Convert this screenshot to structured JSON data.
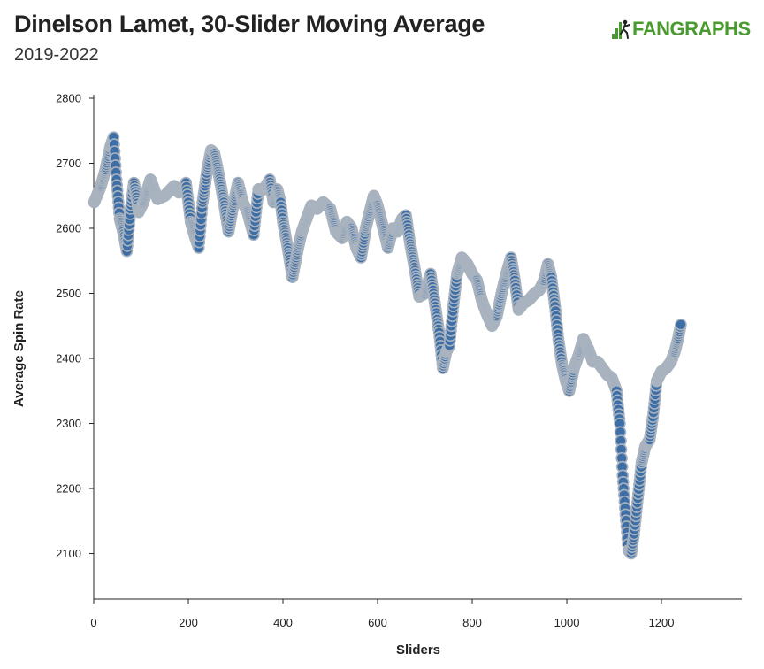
{
  "header": {
    "title": "Dinelson Lamet, 30-Slider Moving Average",
    "subtitle": "2019-2022"
  },
  "logo": {
    "text": "FANGRAPHS",
    "icon": "fangraphs-bars-icon",
    "color": "#4a9b2f"
  },
  "colors": {
    "marker_fill": "#3d6ea6",
    "marker_stroke": "#a9b3bf",
    "axis": "#222222"
  },
  "chart_data": {
    "type": "scatter",
    "title": "Dinelson Lamet, 30-Slider Moving Average",
    "subtitle": "2019-2022",
    "xlabel": "Sliders",
    "ylabel": "Average Spin Rate",
    "xlim": [
      0,
      1370
    ],
    "ylim": [
      2030,
      2800
    ],
    "xticks": [
      "0",
      "200",
      "400",
      "600",
      "800",
      "1000",
      "1200"
    ],
    "yticks": [
      "2100",
      "2200",
      "2300",
      "2400",
      "2500",
      "2600",
      "2700",
      "2800"
    ],
    "grid": false,
    "legend": "none",
    "keypoints": [
      [
        1,
        2640
      ],
      [
        15,
        2665
      ],
      [
        25,
        2690
      ],
      [
        35,
        2725
      ],
      [
        42,
        2740
      ],
      [
        48,
        2675
      ],
      [
        55,
        2615
      ],
      [
        62,
        2595
      ],
      [
        70,
        2565
      ],
      [
        78,
        2630
      ],
      [
        85,
        2670
      ],
      [
        95,
        2625
      ],
      [
        105,
        2640
      ],
      [
        120,
        2675
      ],
      [
        135,
        2645
      ],
      [
        150,
        2650
      ],
      [
        170,
        2665
      ],
      [
        180,
        2655
      ],
      [
        195,
        2670
      ],
      [
        205,
        2610
      ],
      [
        215,
        2585
      ],
      [
        222,
        2570
      ],
      [
        230,
        2640
      ],
      [
        240,
        2690
      ],
      [
        248,
        2720
      ],
      [
        255,
        2715
      ],
      [
        265,
        2680
      ],
      [
        275,
        2640
      ],
      [
        285,
        2595
      ],
      [
        295,
        2635
      ],
      [
        305,
        2670
      ],
      [
        315,
        2640
      ],
      [
        325,
        2625
      ],
      [
        338,
        2590
      ],
      [
        348,
        2660
      ],
      [
        360,
        2660
      ],
      [
        372,
        2675
      ],
      [
        380,
        2640
      ],
      [
        388,
        2660
      ],
      [
        395,
        2640
      ],
      [
        400,
        2610
      ],
      [
        410,
        2570
      ],
      [
        420,
        2525
      ],
      [
        432,
        2570
      ],
      [
        440,
        2595
      ],
      [
        450,
        2615
      ],
      [
        460,
        2635
      ],
      [
        472,
        2630
      ],
      [
        485,
        2640
      ],
      [
        500,
        2630
      ],
      [
        512,
        2595
      ],
      [
        525,
        2585
      ],
      [
        535,
        2610
      ],
      [
        545,
        2600
      ],
      [
        555,
        2570
      ],
      [
        565,
        2555
      ],
      [
        575,
        2600
      ],
      [
        585,
        2630
      ],
      [
        592,
        2650
      ],
      [
        600,
        2635
      ],
      [
        612,
        2600
      ],
      [
        622,
        2570
      ],
      [
        632,
        2600
      ],
      [
        642,
        2595
      ],
      [
        652,
        2615
      ],
      [
        660,
        2620
      ],
      [
        668,
        2580
      ],
      [
        678,
        2540
      ],
      [
        688,
        2495
      ],
      [
        700,
        2500
      ],
      [
        712,
        2530
      ],
      [
        720,
        2490
      ],
      [
        730,
        2440
      ],
      [
        738,
        2385
      ],
      [
        745,
        2410
      ],
      [
        752,
        2420
      ],
      [
        760,
        2480
      ],
      [
        768,
        2530
      ],
      [
        778,
        2555
      ],
      [
        790,
        2545
      ],
      [
        800,
        2530
      ],
      [
        810,
        2520
      ],
      [
        820,
        2490
      ],
      [
        830,
        2470
      ],
      [
        842,
        2450
      ],
      [
        852,
        2465
      ],
      [
        862,
        2500
      ],
      [
        872,
        2530
      ],
      [
        882,
        2555
      ],
      [
        890,
        2520
      ],
      [
        898,
        2475
      ],
      [
        908,
        2485
      ],
      [
        920,
        2490
      ],
      [
        932,
        2500
      ],
      [
        942,
        2505
      ],
      [
        952,
        2520
      ],
      [
        960,
        2545
      ],
      [
        967,
        2525
      ],
      [
        975,
        2480
      ],
      [
        982,
        2430
      ],
      [
        990,
        2390
      ],
      [
        998,
        2365
      ],
      [
        1005,
        2350
      ],
      [
        1015,
        2385
      ],
      [
        1025,
        2405
      ],
      [
        1035,
        2430
      ],
      [
        1045,
        2415
      ],
      [
        1055,
        2395
      ],
      [
        1065,
        2395
      ],
      [
        1075,
        2385
      ],
      [
        1085,
        2375
      ],
      [
        1095,
        2370
      ],
      [
        1105,
        2350
      ],
      [
        1112,
        2300
      ],
      [
        1118,
        2220
      ],
      [
        1124,
        2160
      ],
      [
        1130,
        2105
      ],
      [
        1136,
        2100
      ],
      [
        1142,
        2130
      ],
      [
        1150,
        2185
      ],
      [
        1158,
        2240
      ],
      [
        1166,
        2265
      ],
      [
        1175,
        2275
      ],
      [
        1182,
        2310
      ],
      [
        1190,
        2365
      ],
      [
        1200,
        2380
      ],
      [
        1210,
        2385
      ],
      [
        1220,
        2395
      ],
      [
        1228,
        2410
      ],
      [
        1235,
        2430
      ],
      [
        1241,
        2452
      ]
    ]
  }
}
